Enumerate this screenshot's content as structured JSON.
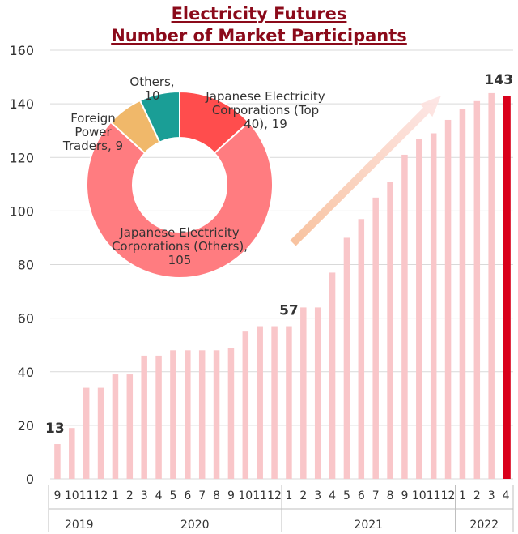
{
  "chart_data": [
    {
      "type": "bar",
      "title_lines": [
        "Electricity Futures",
        "Number of Market Participants"
      ],
      "ylim": [
        0,
        160
      ],
      "yticks": [
        0,
        20,
        40,
        60,
        80,
        100,
        120,
        140,
        160
      ],
      "grid": true,
      "categories": [
        "9",
        "10",
        "11",
        "12",
        "1",
        "2",
        "3",
        "4",
        "5",
        "6",
        "7",
        "8",
        "9",
        "10",
        "11",
        "12",
        "1",
        "2",
        "3",
        "4",
        "5",
        "6",
        "7",
        "8",
        "9",
        "10",
        "11",
        "12",
        "1",
        "2",
        "3",
        "4"
      ],
      "year_groups": [
        {
          "label": "2019",
          "count": 4
        },
        {
          "label": "2020",
          "count": 12
        },
        {
          "label": "2021",
          "count": 12
        },
        {
          "label": "2022",
          "count": 4
        }
      ],
      "values": [
        13,
        19,
        34,
        34,
        39,
        39,
        46,
        46,
        48,
        48,
        48,
        48,
        49,
        55,
        57,
        57,
        57,
        64,
        64,
        77,
        90,
        97,
        105,
        111,
        121,
        127,
        129,
        134,
        138,
        141,
        144,
        143
      ],
      "data_labels": [
        {
          "index": 0,
          "text": "13"
        },
        {
          "index": 16,
          "text": "57"
        },
        {
          "index": 31,
          "text": "143"
        }
      ],
      "highlight_index": 31,
      "colors": {
        "bar": "#f9c6c9",
        "highlight": "#d9001b",
        "grid": "#d9d9d9",
        "axis_text": "#333333",
        "title": "#8b0a1a",
        "arrow": "#f8b99a"
      }
    },
    {
      "type": "pie",
      "style": "donut",
      "slices": [
        {
          "label_lines": [
            "Japanese Electricity",
            "Corporations (Top",
            "40), 19"
          ],
          "value": 19,
          "color": "#ff4d4d"
        },
        {
          "label_lines": [
            "Japanese Electricity",
            "Corporations (Others),",
            "105"
          ],
          "value": 105,
          "color": "#ff7c80"
        },
        {
          "label_lines": [
            "Foreign",
            "Power",
            "Traders, 9"
          ],
          "value": 9,
          "color": "#f0b86a"
        },
        {
          "label_lines": [
            "Others,",
            "10"
          ],
          "value": 10,
          "color": "#1a9e96"
        }
      ]
    }
  ]
}
